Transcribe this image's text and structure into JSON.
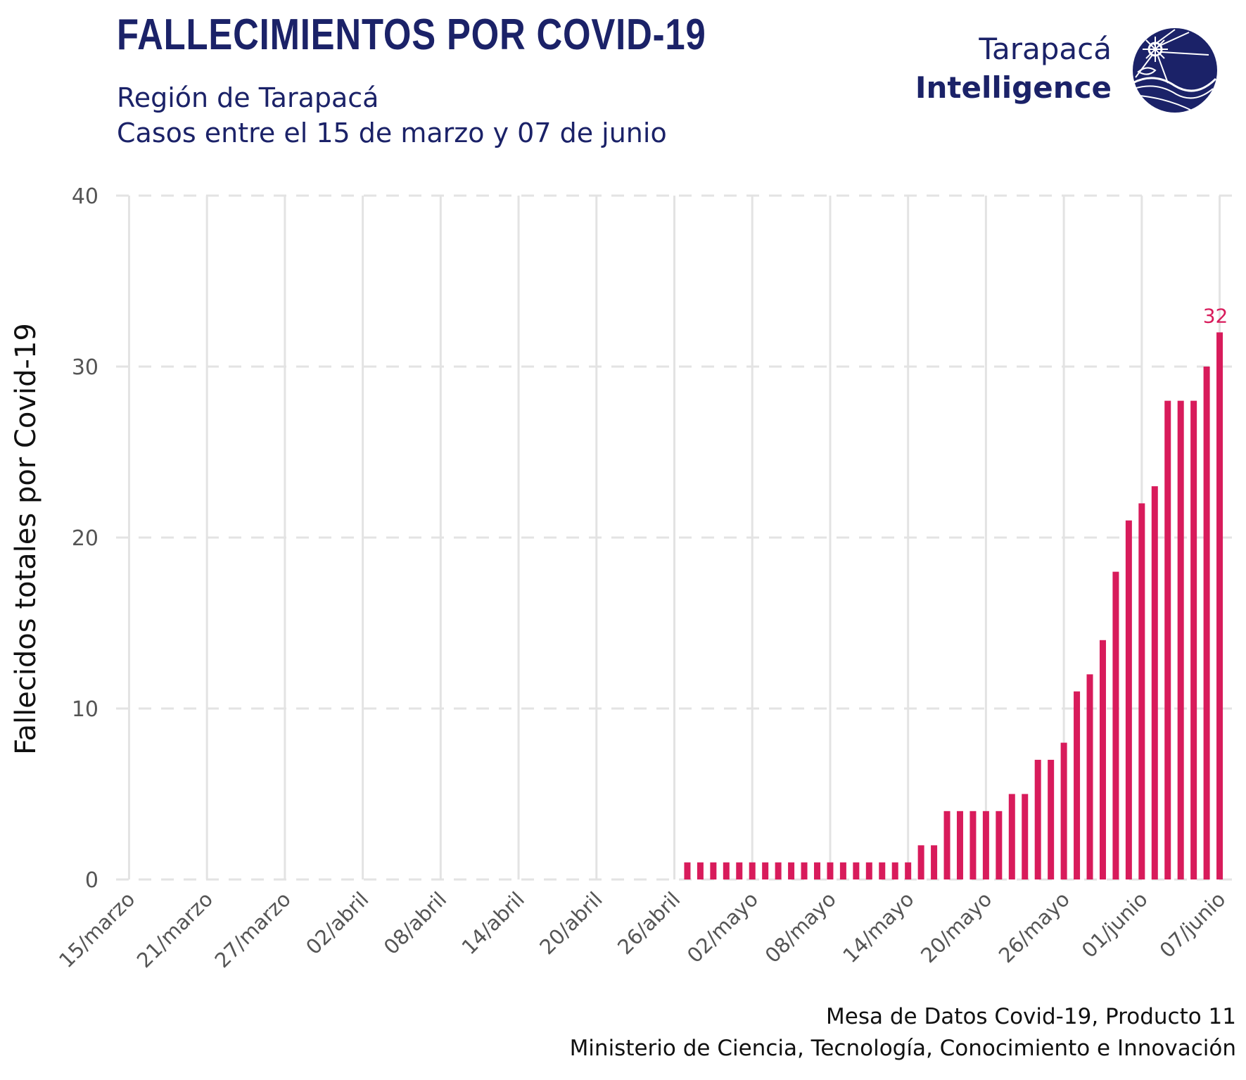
{
  "header": {
    "title": "FALLECIMIENTOS POR COVID-19",
    "subtitle_line1": "Región de Tarapacá",
    "subtitle_line2": "Casos entre el 15 de marzo y 07 de junio"
  },
  "logo": {
    "line1": "Tarapacá",
    "line2": "Intelligence",
    "mark_icon": "compass-globe-icon",
    "color": "#1b2268"
  },
  "caption": {
    "line1": "Mesa de Datos Covid-19, Producto 11",
    "line2": "Ministerio de Ciencia, Tecnología, Conocimiento e Innovación"
  },
  "colors": {
    "bar": "#d81b5b",
    "navy": "#1b2268",
    "grid": "#e3e3e3"
  },
  "chart_data": {
    "type": "bar",
    "ylabel": "Fallecidos totales por Covid-19",
    "xlabel": "",
    "ylim": [
      0,
      40
    ],
    "yticks": [
      0,
      10,
      20,
      30,
      40
    ],
    "xlim": [
      "2020-03-14",
      "2020-06-08"
    ],
    "x_tick_labels": [
      {
        "date": "2020-03-15",
        "label": "15/marzo"
      },
      {
        "date": "2020-03-21",
        "label": "21/marzo"
      },
      {
        "date": "2020-03-27",
        "label": "27/marzo"
      },
      {
        "date": "2020-04-02",
        "label": "02/abril"
      },
      {
        "date": "2020-04-08",
        "label": "08/abril"
      },
      {
        "date": "2020-04-14",
        "label": "14/abril"
      },
      {
        "date": "2020-04-20",
        "label": "20/abril"
      },
      {
        "date": "2020-04-26",
        "label": "26/abril"
      },
      {
        "date": "2020-05-02",
        "label": "02/mayo"
      },
      {
        "date": "2020-05-08",
        "label": "08/mayo"
      },
      {
        "date": "2020-05-14",
        "label": "14/mayo"
      },
      {
        "date": "2020-05-20",
        "label": "20/mayo"
      },
      {
        "date": "2020-05-26",
        "label": "26/mayo"
      },
      {
        "date": "2020-06-01",
        "label": "01/junio"
      },
      {
        "date": "2020-06-07",
        "label": "07/junio"
      }
    ],
    "grid": {
      "horizontal": "dashed",
      "vertical": "solid"
    },
    "series": [
      {
        "points": [
          [
            "2020-04-27",
            1
          ],
          [
            "2020-04-28",
            1
          ],
          [
            "2020-04-29",
            1
          ],
          [
            "2020-04-30",
            1
          ],
          [
            "2020-05-01",
            1
          ],
          [
            "2020-05-02",
            1
          ],
          [
            "2020-05-03",
            1
          ],
          [
            "2020-05-04",
            1
          ],
          [
            "2020-05-05",
            1
          ],
          [
            "2020-05-06",
            1
          ],
          [
            "2020-05-07",
            1
          ],
          [
            "2020-05-08",
            1
          ],
          [
            "2020-05-09",
            1
          ],
          [
            "2020-05-10",
            1
          ],
          [
            "2020-05-11",
            1
          ],
          [
            "2020-05-12",
            1
          ],
          [
            "2020-05-13",
            1
          ],
          [
            "2020-05-14",
            1
          ],
          [
            "2020-05-15",
            2
          ],
          [
            "2020-05-16",
            2
          ],
          [
            "2020-05-17",
            4
          ],
          [
            "2020-05-18",
            4
          ],
          [
            "2020-05-19",
            4
          ],
          [
            "2020-05-20",
            4
          ],
          [
            "2020-05-21",
            4
          ],
          [
            "2020-05-22",
            5
          ],
          [
            "2020-05-23",
            5
          ],
          [
            "2020-05-24",
            7
          ],
          [
            "2020-05-25",
            7
          ],
          [
            "2020-05-26",
            8
          ],
          [
            "2020-05-27",
            11
          ],
          [
            "2020-05-28",
            12
          ],
          [
            "2020-05-29",
            14
          ],
          [
            "2020-05-30",
            18
          ],
          [
            "2020-05-31",
            21
          ],
          [
            "2020-06-01",
            22
          ],
          [
            "2020-06-02",
            23
          ],
          [
            "2020-06-03",
            28
          ],
          [
            "2020-06-04",
            28
          ],
          [
            "2020-06-05",
            28
          ],
          [
            "2020-06-06",
            30
          ],
          [
            "2020-06-07",
            32
          ]
        ]
      }
    ],
    "annotations": [
      {
        "date": "2020-06-07",
        "value": 32,
        "text": "32"
      }
    ]
  }
}
